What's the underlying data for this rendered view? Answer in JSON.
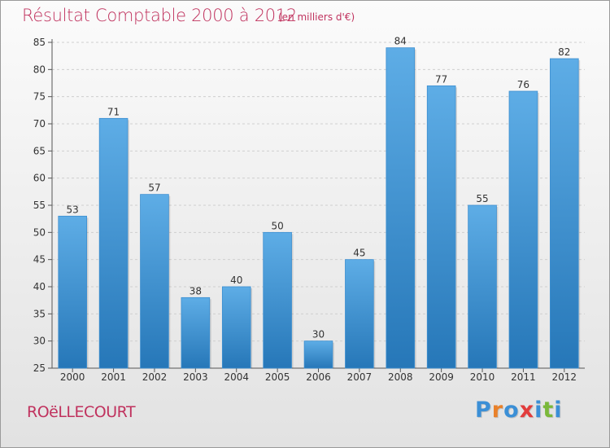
{
  "chart_data": {
    "type": "bar",
    "title": "Résultat Comptable 2000 à 2012",
    "subtitle": "(en milliers d'€)",
    "categories": [
      "2000",
      "2001",
      "2002",
      "2003",
      "2004",
      "2005",
      "2006",
      "2007",
      "2008",
      "2009",
      "2010",
      "2011",
      "2012"
    ],
    "values": [
      53,
      71,
      57,
      38,
      40,
      50,
      30,
      45,
      84,
      77,
      55,
      76,
      82
    ],
    "ylim": [
      25,
      85
    ],
    "yticks": [
      25,
      30,
      35,
      40,
      45,
      50,
      55,
      60,
      65,
      70,
      75,
      80,
      85
    ],
    "grid": true,
    "xlabel": "",
    "ylabel": ""
  },
  "footer": {
    "location": "ROëLLECOURT",
    "brand_letters": [
      "P",
      "r",
      "o",
      "x",
      "i",
      "t",
      "i"
    ]
  },
  "colors": {
    "title": "#c0325e",
    "bar_top": "#5eade6",
    "bar_bottom": "#2677b8",
    "brand": [
      "#3b8fd6",
      "#e9812a",
      "#3b8fd6",
      "#e23c3c",
      "#3b8fd6",
      "#7ab83a",
      "#3b8fd6"
    ]
  }
}
